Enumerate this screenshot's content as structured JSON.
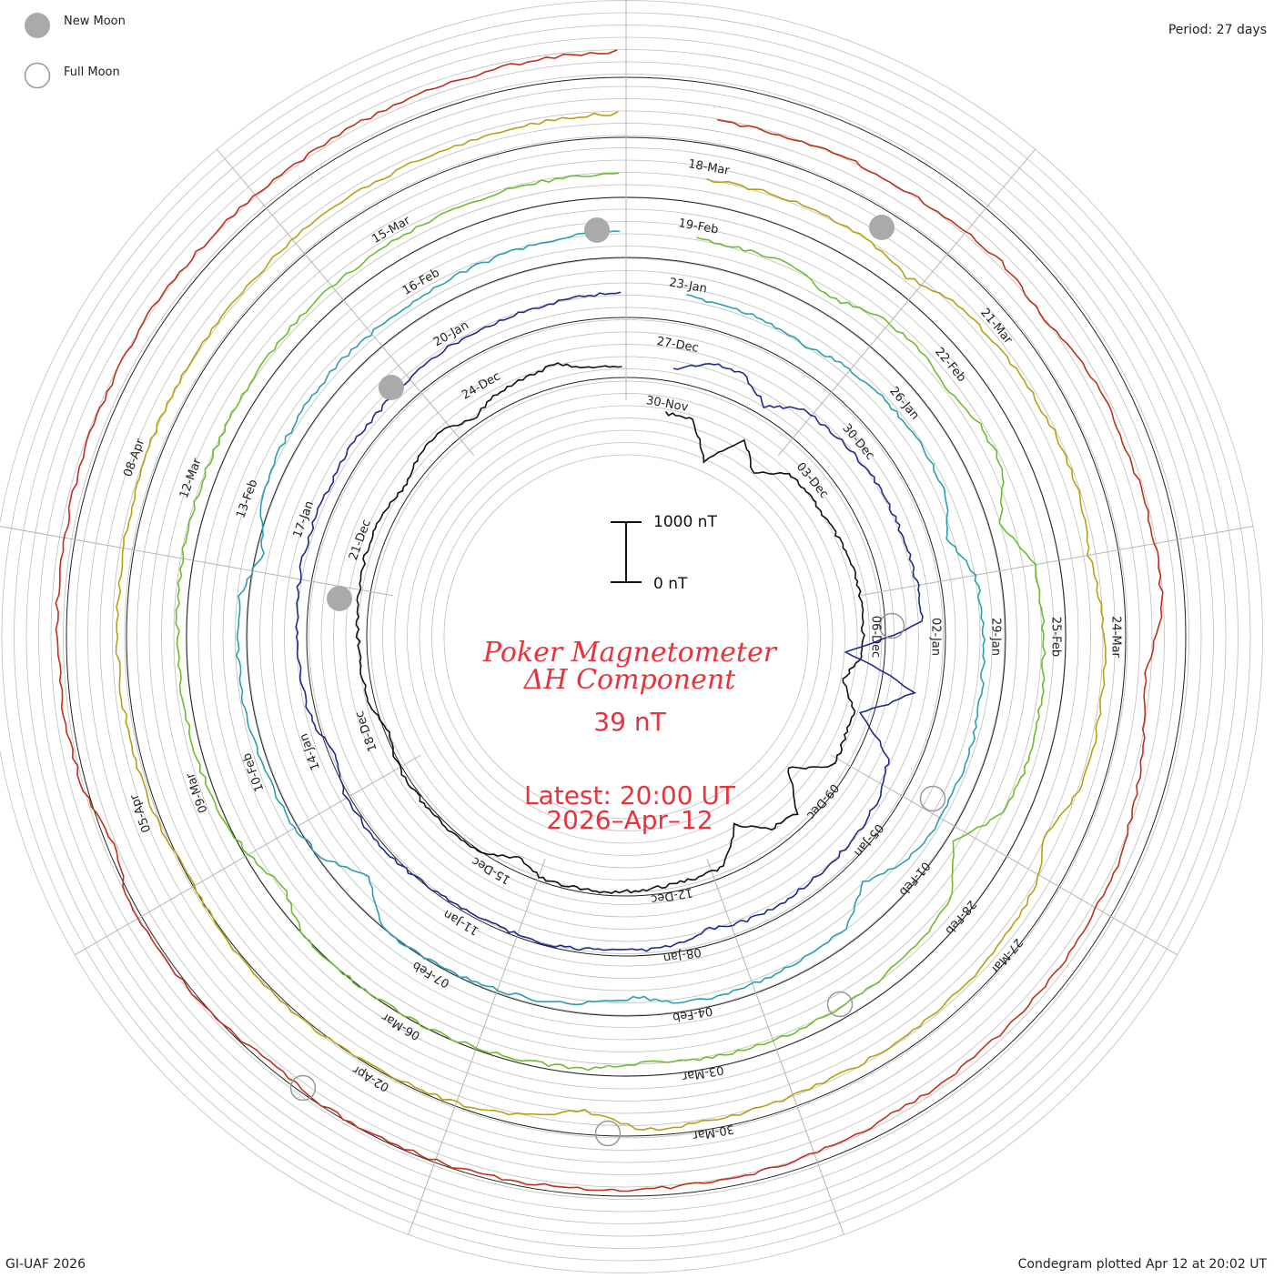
{
  "legend": {
    "new_moon_label": "New Moon",
    "full_moon_label": "Full Moon"
  },
  "period_text": "Period: 27 days",
  "title_line1": "Poker Magnetometer",
  "title_line2": "ΔH Component",
  "current_value": "39 nT",
  "latest_line1": "Latest: 20:00 UT",
  "latest_line2": "2026–Apr–12",
  "scale": {
    "top_label": "1000 nT",
    "bottom_label": "0 nT"
  },
  "footer_left": "GI-UAF 2026",
  "footer_right": "Condegram plotted Apr 12 at 20:02 UT",
  "colors": {
    "title": "#e8323c",
    "moon_new": "#aaaaaa",
    "moon_full": "#999999",
    "grid": "#bdbdbd"
  },
  "chart_data": {
    "type": "line",
    "plot_kind": "condegram (spiral)",
    "period_days": 27,
    "y_unit": "nT",
    "scale_bar": [
      0,
      1000
    ],
    "date_labels": [
      "30-Nov",
      "03-Dec",
      "06-Dec",
      "09-Dec",
      "12-Dec",
      "15-Dec",
      "18-Dec",
      "21-Dec",
      "24-Dec",
      "27-Dec",
      "30-Dec",
      "02-Jan",
      "05-Jan",
      "08-Jan",
      "11-Jan",
      "14-Jan",
      "17-Jan",
      "20-Jan",
      "23-Jan",
      "26-Jan",
      "29-Jan",
      "01-Feb",
      "04-Feb",
      "07-Feb",
      "10-Feb",
      "13-Feb",
      "16-Feb",
      "19-Feb",
      "22-Feb",
      "25-Feb",
      "28-Feb",
      "03-Mar",
      "06-Mar",
      "09-Mar",
      "12-Mar",
      "15-Mar",
      "18-Mar",
      "21-Mar",
      "24-Mar",
      "27-Mar",
      "30-Mar",
      "02-Apr",
      "05-Apr",
      "08-Apr"
    ],
    "series": [
      {
        "values": [
          40,
          60,
          650,
          80,
          450,
          70,
          90,
          100,
          80,
          60,
          70,
          90,
          110,
          400,
          120,
          100,
          80,
          700,
          90,
          200,
          600,
          90,
          70,
          80,
          60,
          50,
          70,
          90,
          300,
          80,
          60,
          70,
          90,
          120,
          250,
          110,
          90,
          100,
          80,
          70,
          60,
          90,
          200,
          100,
          80,
          300,
          150,
          120,
          100,
          300
        ]
      },
      {
        "values": [
          300,
          80,
          60,
          400,
          100,
          90,
          70,
          60,
          80,
          100,
          90,
          110,
          1400,
          200,
          1000,
          300,
          150,
          120,
          100,
          90,
          80,
          100,
          200,
          80,
          70,
          90,
          60,
          80,
          100,
          120,
          100,
          80,
          90,
          110,
          300,
          100,
          80,
          90,
          70,
          60,
          80,
          100,
          90,
          110,
          100,
          80,
          70,
          90,
          100,
          80
        ]
      },
      {
        "values": [
          60,
          80,
          100,
          200,
          120,
          90,
          80,
          100,
          150,
          400,
          120,
          90,
          100,
          80,
          70,
          90,
          100,
          200,
          500,
          120,
          100,
          90,
          80,
          100,
          300,
          200,
          120,
          100,
          90,
          80,
          100,
          600,
          200,
          100,
          90,
          80,
          70,
          90,
          100,
          400,
          150,
          100,
          90,
          80,
          100,
          120,
          100,
          90,
          80,
          70
        ]
      },
      {
        "values": [
          80,
          100,
          90,
          300,
          100,
          80,
          200,
          90,
          100,
          500,
          120,
          100,
          90,
          80,
          100,
          200,
          700,
          200,
          120,
          100,
          90,
          80,
          100,
          150,
          200,
          100,
          90,
          80,
          70,
          90,
          100,
          120,
          400,
          200,
          100,
          90,
          80,
          100,
          90,
          80,
          100,
          120,
          100,
          90,
          80,
          100,
          90,
          80,
          70,
          90
        ]
      },
      {
        "values": [
          90,
          80,
          100,
          120,
          300,
          100,
          90,
          80,
          70,
          90,
          200,
          100,
          80,
          90,
          100,
          400,
          150,
          100,
          90,
          80,
          100,
          120,
          100,
          90,
          80,
          400,
          200,
          100,
          90,
          80,
          70,
          90,
          100,
          200,
          120,
          100,
          90,
          80,
          100,
          90,
          80,
          70,
          90,
          100,
          80,
          70,
          90,
          100,
          120,
          100
        ]
      },
      {
        "values": [
          100,
          90,
          80,
          120,
          100,
          90,
          200,
          100,
          80,
          90,
          70,
          100,
          400,
          300,
          200,
          100,
          90,
          80,
          100,
          90,
          120,
          100,
          80,
          90,
          100,
          90,
          80,
          70,
          90,
          100,
          200,
          100,
          90,
          80,
          300,
          120,
          100,
          90,
          80,
          100,
          90,
          80,
          70,
          90,
          100,
          120,
          100,
          90,
          80,
          70
        ]
      }
    ]
  }
}
